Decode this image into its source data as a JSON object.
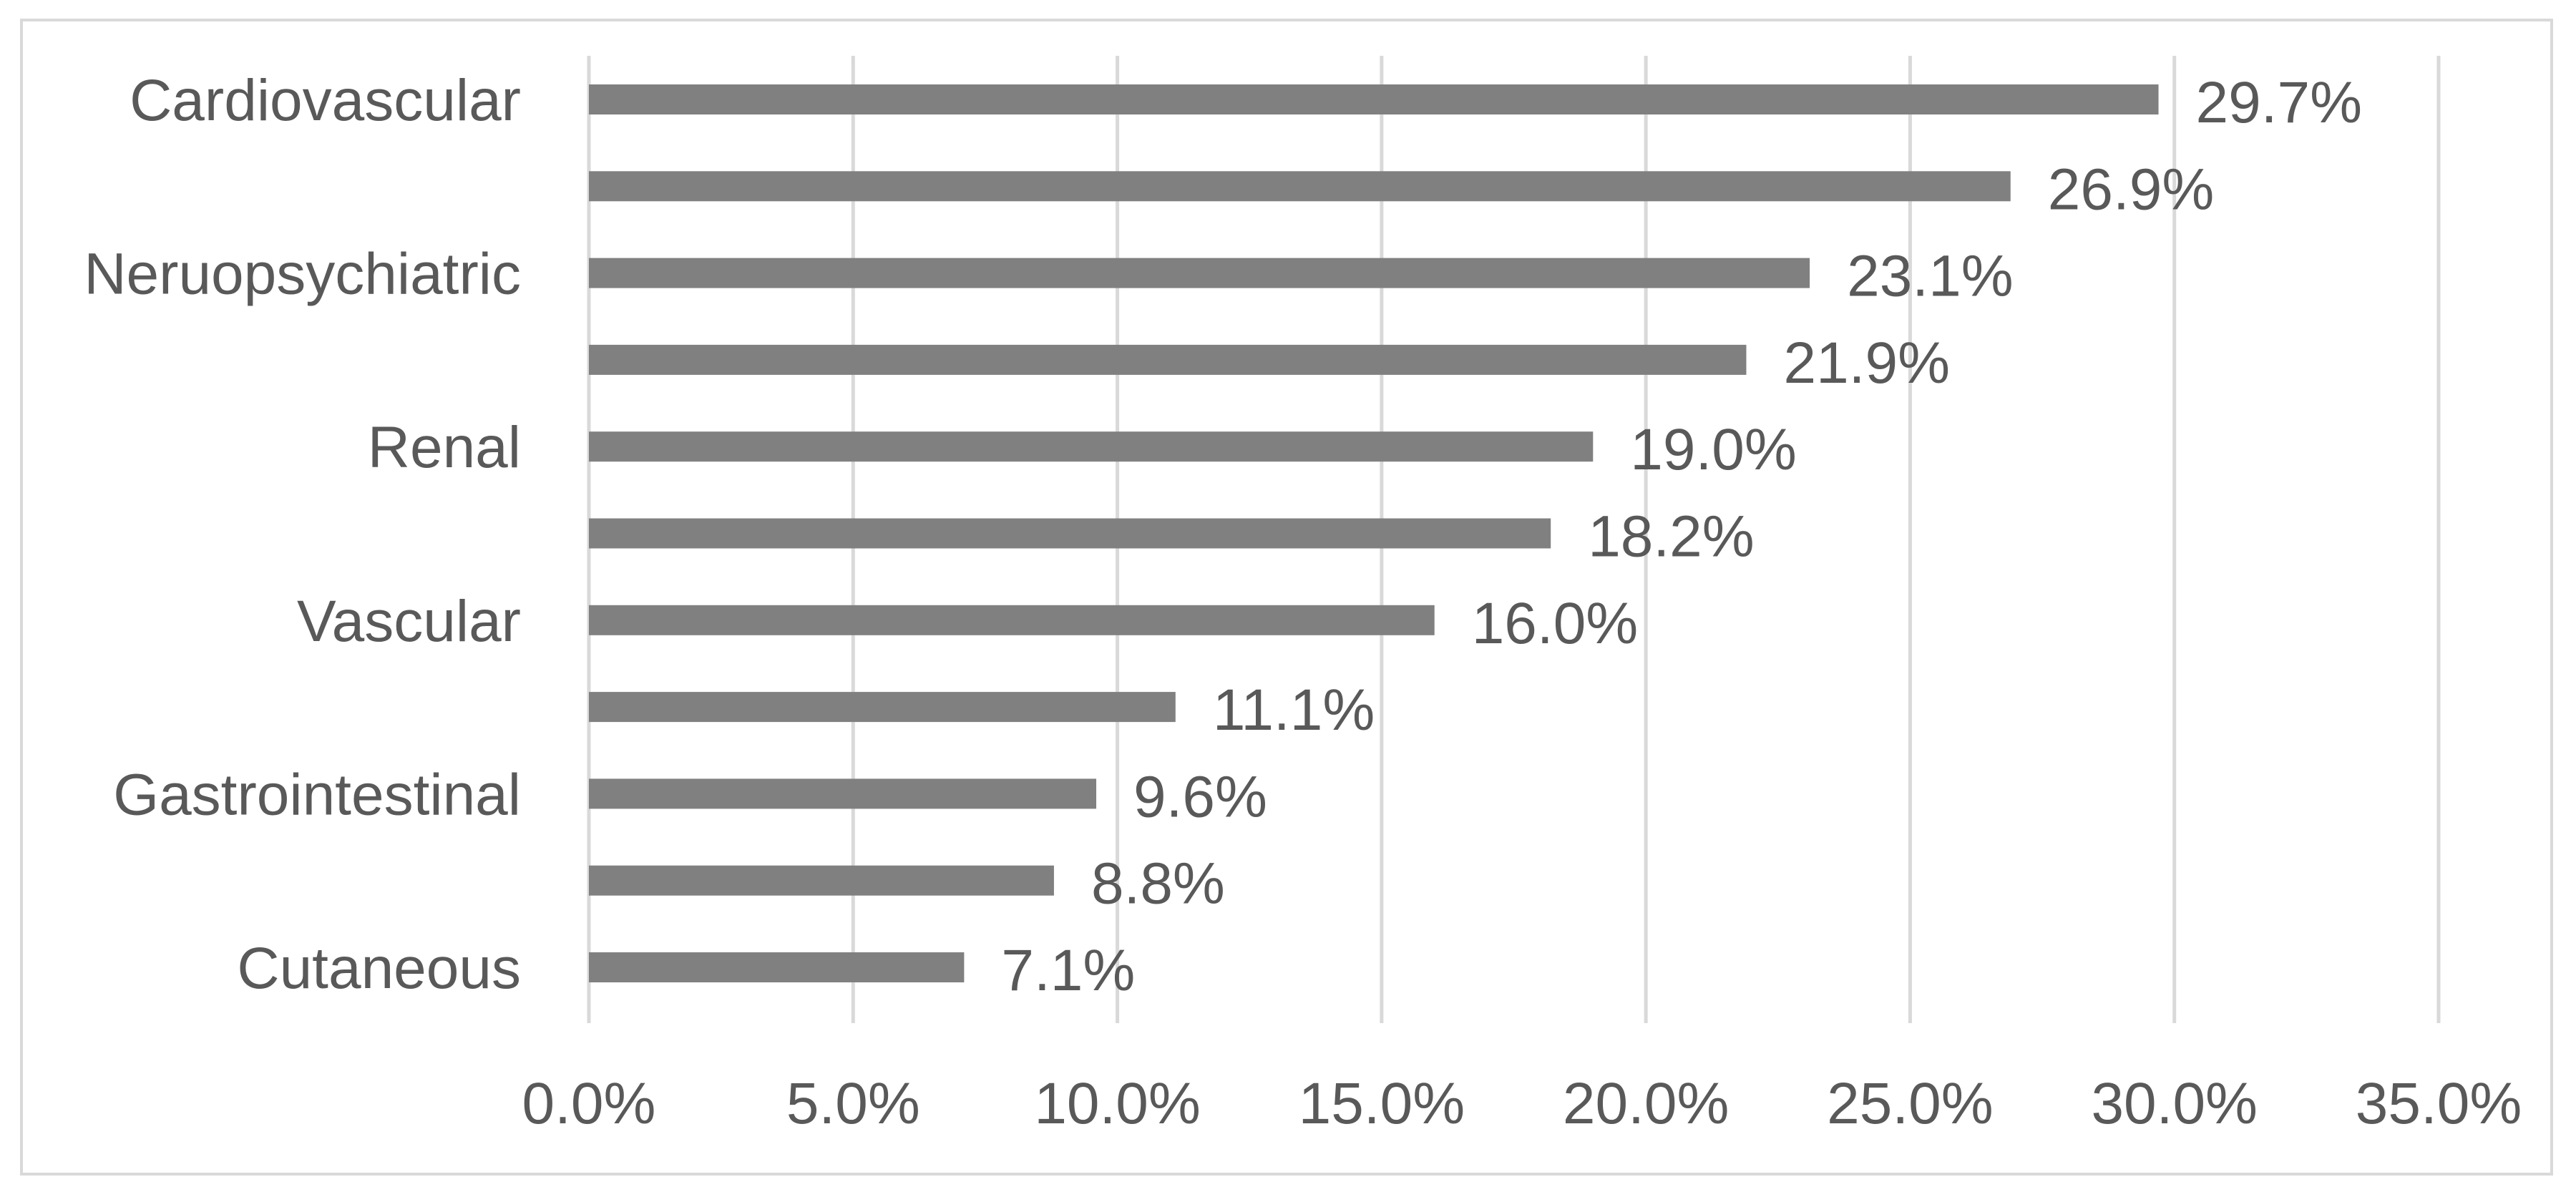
{
  "chart_data": {
    "type": "bar",
    "orientation": "horizontal",
    "title": "",
    "xlabel": "",
    "ylabel": "",
    "categories": [
      "Cardiovascular",
      "",
      "Neruopsychiatric",
      "",
      "Renal",
      "",
      "Vascular",
      "",
      "Gastrointestinal",
      "",
      "Cutaneous"
    ],
    "values": [
      29.7,
      26.9,
      23.1,
      21.9,
      19.0,
      18.2,
      16.0,
      11.1,
      9.6,
      8.8,
      7.1
    ],
    "value_labels": [
      "29.7%",
      "26.9%",
      "23.1%",
      "21.9%",
      "19.0%",
      "18.2%",
      "16.0%",
      "11.1%",
      "9.6%",
      "8.8%",
      "7.1%"
    ],
    "xlim": [
      0,
      35
    ],
    "x_ticks": [
      0,
      5,
      10,
      15,
      20,
      25,
      30,
      35
    ],
    "x_tick_labels": [
      "0.0%",
      "5.0%",
      "10.0%",
      "15.0%",
      "20.0%",
      "25.0%",
      "30.0%",
      "35.0%"
    ],
    "grid": "vertical",
    "legend": "none",
    "colors": {
      "bar": "#808080",
      "grid": "#d9d9d9",
      "text": "#595959",
      "frame": "#d9d9d9"
    }
  }
}
